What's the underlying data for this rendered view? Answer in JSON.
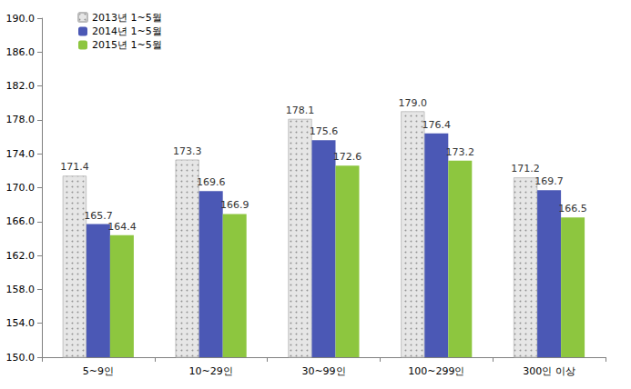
{
  "chart_data": {
    "type": "bar",
    "categories": [
      "5~9인",
      "10~29인",
      "30~99인",
      "100~299인",
      "300인 이상"
    ],
    "series": [
      {
        "name": "2013년 1~5월",
        "color": "#e6e6e6",
        "values": [
          171.4,
          173.3,
          178.1,
          179.0,
          171.2
        ],
        "value_labels": [
          "171.4",
          "173.3",
          "178.1",
          "179.0",
          "171.2"
        ]
      },
      {
        "name": "2014년 1~5월",
        "color": "#4b58b5",
        "values": [
          165.7,
          169.6,
          175.6,
          176.4,
          169.7
        ],
        "value_labels": [
          "165.7",
          "169.6",
          "175.6",
          "176.4",
          "169.7"
        ]
      },
      {
        "name": "2015년 1~5월",
        "color": "#8dc63f",
        "values": [
          164.4,
          166.9,
          172.6,
          173.2,
          166.5
        ],
        "value_labels": [
          "164.4",
          "166.9",
          "172.6",
          "173.2",
          "166.5"
        ]
      }
    ],
    "ylim": [
      150,
      190
    ],
    "yticks": [
      {
        "value": 150,
        "label": "150.0"
      },
      {
        "value": 154,
        "label": "154.0"
      },
      {
        "value": 158,
        "label": "158.0"
      },
      {
        "value": 162,
        "label": "162.0"
      },
      {
        "value": 166,
        "label": "166.0"
      },
      {
        "value": 170,
        "label": "170.0"
      },
      {
        "value": 174,
        "label": "174.0"
      },
      {
        "value": 178,
        "label": "178.0"
      },
      {
        "value": 182,
        "label": "182.0"
      },
      {
        "value": 186,
        "label": "186.0"
      },
      {
        "value": 190,
        "label": "190.0"
      }
    ],
    "grid": false,
    "legend": "top-left",
    "data_labels": true
  }
}
